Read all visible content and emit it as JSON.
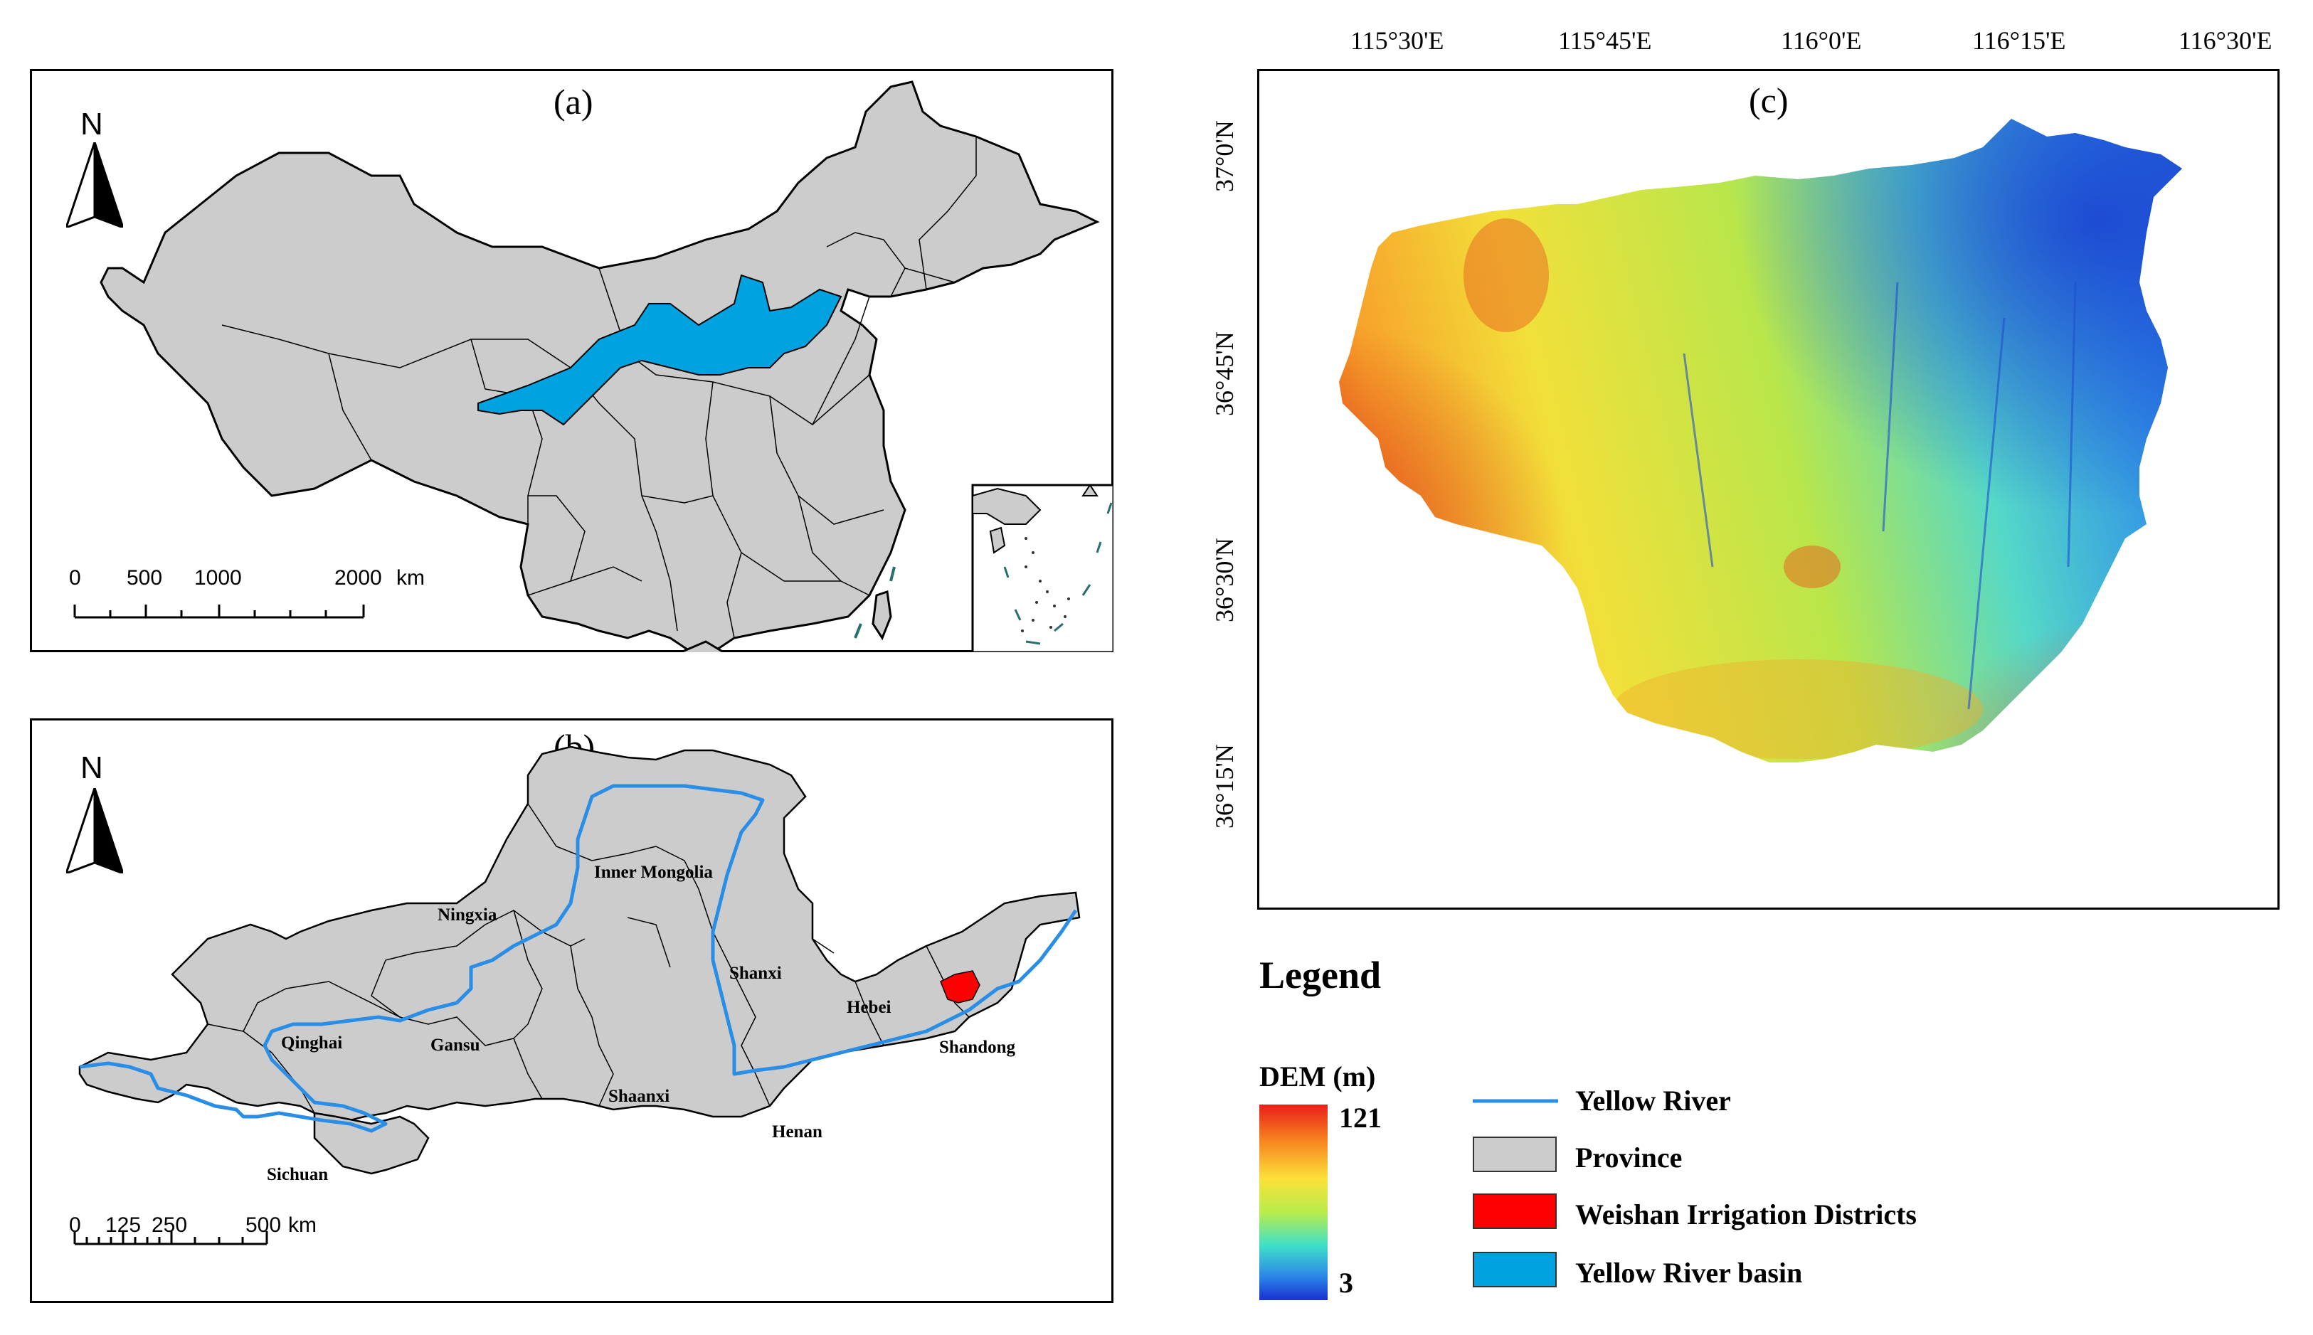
{
  "panel_a": {
    "label": "(a)",
    "north": "N",
    "scale_labels": [
      "0",
      "500",
      "1000",
      "2000",
      "km"
    ]
  },
  "panel_b": {
    "label": "(b)",
    "north": "N",
    "scale_labels": [
      "0",
      "125",
      "250",
      "500",
      "km"
    ],
    "provinces": [
      "Inner Mongolia",
      "Ningxia",
      "Shanxi",
      "Hebei",
      "Qinghai",
      "Gansu",
      "Shandong",
      "Shaanxi",
      "Henan",
      "Sichuan"
    ]
  },
  "panel_c": {
    "label": "(c)",
    "lon_labels": [
      "115°30'E",
      "115°45'E",
      "116°0'E",
      "116°15'E",
      "116°30'E"
    ],
    "lat_labels": [
      "37°0'N",
      "36°45'N",
      "36°30'N",
      "36°15'N"
    ]
  },
  "legend": {
    "title": "Legend",
    "dem_title": "DEM (m)",
    "dem_max": "121",
    "dem_min": "3",
    "items": [
      "Yellow River",
      "Province",
      "Weishan Irrigation Districts",
      "Yellow River basin"
    ],
    "colors": {
      "yellow_river": "#2a8ee6",
      "province": "#cccccc",
      "weishan": "#ff0000",
      "basin": "#00a3e0"
    }
  }
}
